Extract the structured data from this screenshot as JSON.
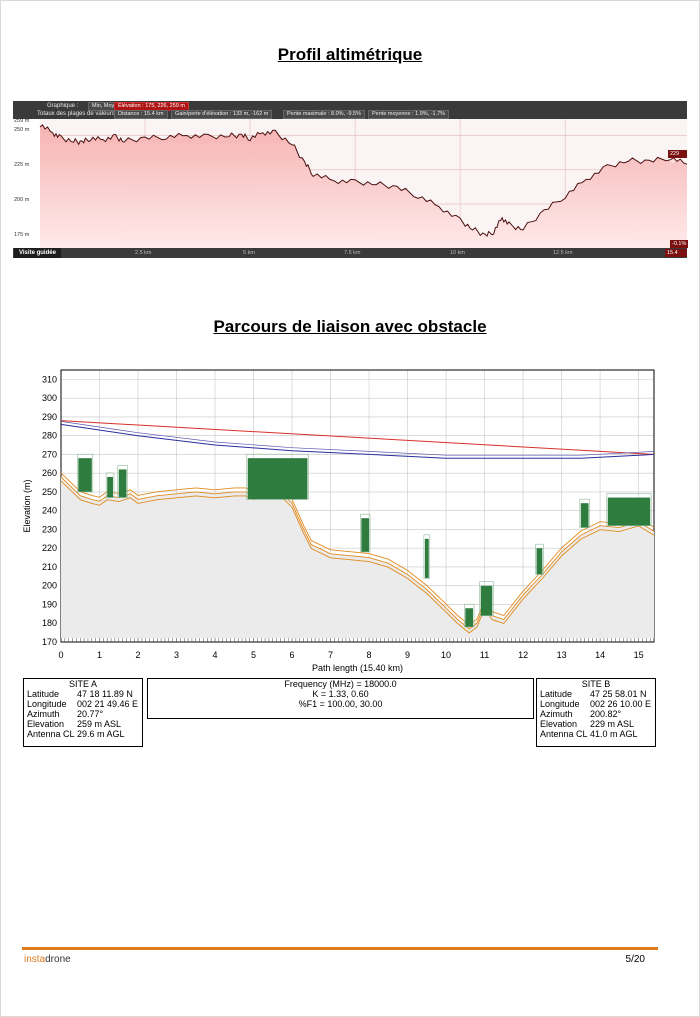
{
  "page": {
    "title_profile": "Profil altimétrique",
    "title_link": "Parcours de liaison avec obstacle",
    "footer_brand_a": "insta",
    "footer_brand_b": "drone",
    "page_number": "5/20"
  },
  "profile_widget": {
    "row1_label": "Graphique :",
    "row1_options": "Min, Moy., Max",
    "row1_elevation": "Élévation : 175, 226, 259 m",
    "row2_label": "Totaux des plages de valeurs :",
    "distance": "Distance : 15.4 km",
    "gain": "Gain/perte d'élévation : 133 m, -162 m",
    "max_slope": "Pente maximale : 8.0%, -9.5%",
    "avg_slope": "Pente moyenne : 1.9%, -1.7%",
    "guide_button": "Visite guidée",
    "y_ticks": [
      "259 m",
      "250 m",
      "225 m",
      "200 m",
      "175 m"
    ],
    "x_ticks": [
      "2.5 km",
      "5 km",
      "7.5 km",
      "10 km",
      "12.5 km"
    ],
    "end_elevation_badge": "229 m",
    "end_slope_badge": "-0.1%",
    "end_distance_badge": "15.4 km",
    "colors": {
      "fill_top": "#f6b3b3",
      "fill_bottom": "#ffeaea",
      "line": "#4a1010",
      "bar": "#3a3a3a"
    }
  },
  "chart_data": {
    "type": "line",
    "xlabel": "Path length (15.40 km)",
    "ylabel": "Elevation (m)",
    "xlim": [
      0,
      15.4
    ],
    "ylim": [
      170,
      315
    ],
    "x_ticks": [
      0,
      1,
      2,
      3,
      4,
      5,
      6,
      7,
      8,
      9,
      10,
      11,
      12,
      13,
      14,
      15
    ],
    "y_ticks": [
      170,
      180,
      190,
      200,
      210,
      220,
      230,
      240,
      250,
      260,
      270,
      280,
      290,
      300,
      310
    ],
    "grid": true,
    "series": [
      {
        "x": [
          0,
          0.3,
          0.5,
          0.8,
          1.0,
          1.2,
          1.5,
          1.8,
          2.0,
          2.5,
          3.0,
          3.5,
          4.0,
          4.5,
          4.8,
          5.0,
          5.3,
          5.6,
          6.0,
          6.3,
          6.5,
          7.0,
          7.5,
          8.0,
          8.5,
          9.0,
          9.5,
          10.0,
          10.3,
          10.6,
          10.8,
          11.0,
          11.2,
          11.5,
          12.0,
          12.5,
          13.0,
          13.5,
          14.0,
          14.5,
          15.0,
          15.4
        ],
        "values": [
          258,
          252,
          248,
          246,
          245,
          248,
          247,
          249,
          246,
          248,
          249,
          250,
          249,
          250,
          250,
          248,
          252,
          252,
          244,
          230,
          222,
          217,
          216,
          215,
          212,
          206,
          198,
          188,
          182,
          177,
          180,
          190,
          184,
          182,
          195,
          206,
          218,
          227,
          232,
          231,
          234,
          229
        ]
      },
      {
        "x": [
          0,
          15.4
        ],
        "values": [
          288,
          270
        ]
      },
      {
        "x": [
          0,
          2,
          4,
          6,
          8,
          10,
          12,
          13.5,
          14.5,
          15.4
        ],
        "values": [
          286,
          280,
          275,
          272,
          270,
          268,
          268,
          268,
          269,
          270
        ]
      }
    ],
    "obstacles": [
      {
        "x0": 0.45,
        "x1": 0.8,
        "ybase": 250,
        "ytop": 268
      },
      {
        "x0": 1.2,
        "x1": 1.35,
        "ybase": 247,
        "ytop": 258
      },
      {
        "x0": 1.5,
        "x1": 1.7,
        "ybase": 247,
        "ytop": 262
      },
      {
        "x0": 4.85,
        "x1": 6.4,
        "ybase": 246,
        "ytop": 268
      },
      {
        "x0": 7.8,
        "x1": 8.0,
        "ybase": 218,
        "ytop": 236
      },
      {
        "x0": 9.45,
        "x1": 9.55,
        "ybase": 204,
        "ytop": 225
      },
      {
        "x0": 10.5,
        "x1": 10.7,
        "ybase": 178,
        "ytop": 188
      },
      {
        "x0": 10.9,
        "x1": 11.2,
        "ybase": 184,
        "ytop": 200
      },
      {
        "x0": 12.35,
        "x1": 12.5,
        "ybase": 206,
        "ytop": 220
      },
      {
        "x0": 13.5,
        "x1": 13.7,
        "ybase": 231,
        "ytop": 244
      },
      {
        "x0": 14.2,
        "x1": 15.3,
        "ybase": 232,
        "ytop": 247
      }
    ],
    "colors": {
      "terrain": "#d6d6d6",
      "clutter": "#2e7d3f",
      "fresnel": "#e08a1e",
      "los": "#d9302a",
      "curve": "#2b2f9e"
    }
  },
  "site_a": {
    "header": "SITE A",
    "rows": [
      {
        "k": "Latitude",
        "v": "47 18 11.89 N"
      },
      {
        "k": "Longitude",
        "v": "002 21 49.46 E"
      },
      {
        "k": "Azimuth",
        "v": "20.77°"
      },
      {
        "k": "Elevation",
        "v": "259 m ASL"
      },
      {
        "k": "Antenna CL",
        "v": "29.6 m AGL"
      }
    ]
  },
  "site_b": {
    "header": "SITE B",
    "rows": [
      {
        "k": "Latitude",
        "v": "47 25 58.01 N"
      },
      {
        "k": "Longitude",
        "v": "002 26 10.00 E"
      },
      {
        "k": "Azimuth",
        "v": "200.82°"
      },
      {
        "k": "Elevation",
        "v": "229 m ASL"
      },
      {
        "k": "Antenna CL",
        "v": "41.0 m AGL"
      }
    ]
  },
  "radio": {
    "frequency": "Frequency (MHz) = 18000.0",
    "k": "K =  1.33, 0.60",
    "f1": "%F1 = 100.00, 30.00"
  }
}
